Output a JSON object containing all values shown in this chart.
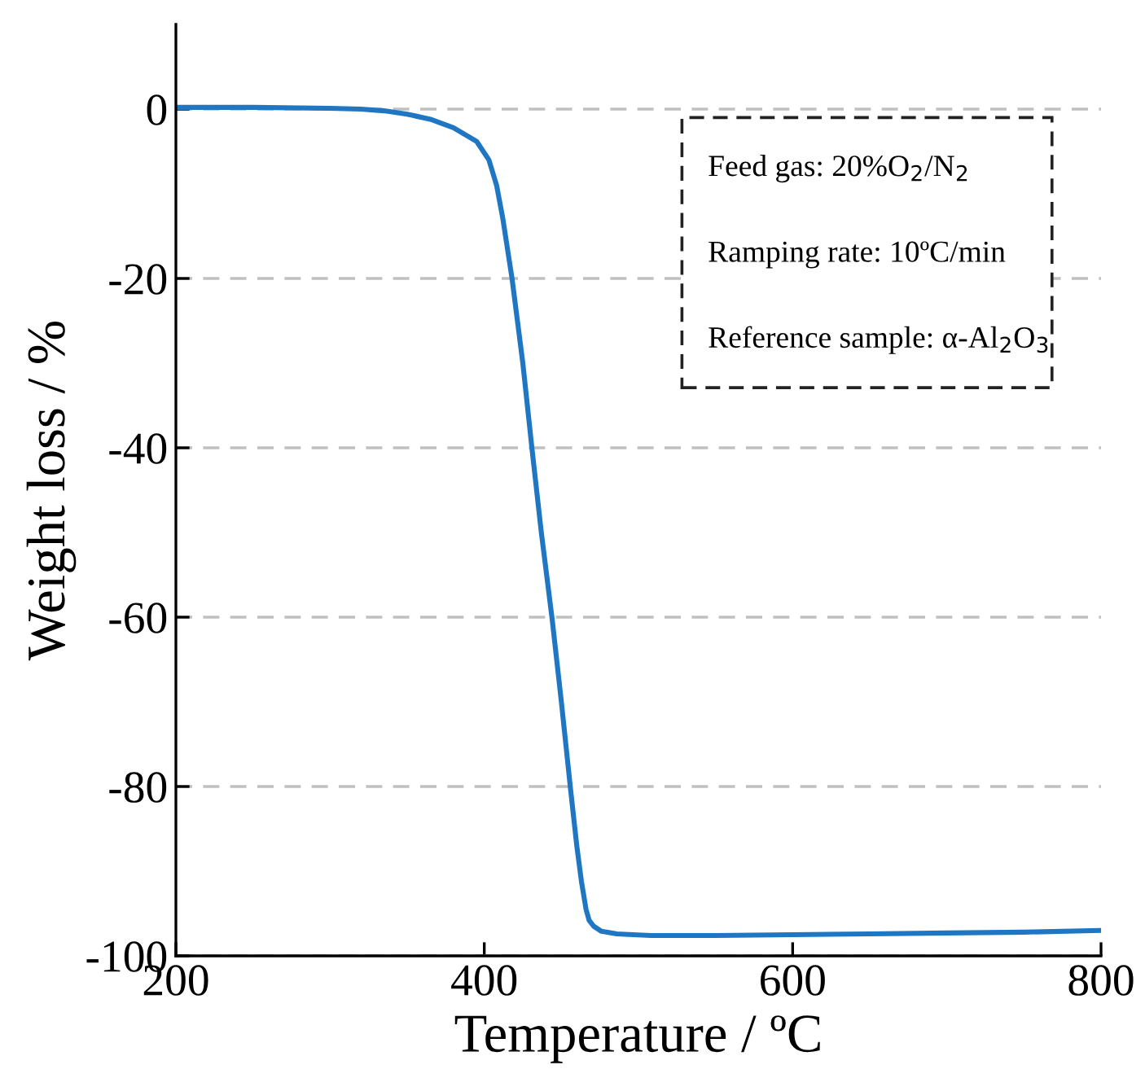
{
  "chart_data": {
    "type": "line",
    "xlabel": "Temperature / ºC",
    "ylabel": "Weight loss / %",
    "series": [
      {
        "color": "#1f77c4",
        "x": [
          200,
          250,
          300,
          320,
          335,
          350,
          365,
          380,
          395,
          403,
          408,
          412,
          418,
          425,
          431,
          437,
          444,
          450,
          456,
          460,
          463,
          466,
          468,
          471,
          476,
          486,
          508,
          550,
          600,
          650,
          700,
          750,
          800
        ],
        "values": [
          0.2,
          0.2,
          0.1,
          0,
          -0.2,
          -0.6,
          -1.2,
          -2.2,
          -3.8,
          -6.0,
          -9,
          -12.9,
          -20,
          -30,
          -40.2,
          -50,
          -60.2,
          -70,
          -80.4,
          -87,
          -91.2,
          -94.5,
          -95.8,
          -96.5,
          -97.1,
          -97.4,
          -97.6,
          -97.6,
          -97.5,
          -97.4,
          -97.3,
          -97.2,
          -97.0
        ]
      }
    ],
    "xlim": [
      200,
      800
    ],
    "ylim": [
      -100,
      10
    ],
    "xticks": [
      200,
      400,
      600,
      800
    ],
    "yticks": [
      -100,
      -80,
      -60,
      -40,
      -20,
      0
    ],
    "grid": "y",
    "marker": "none",
    "line_style": "solid",
    "annotations": [
      "Feed gas: 20%O$_{2}$/N$_{2}$",
      "Ramping rate: 10ºC/min",
      "Reference sample: α-Al$_{2}$O$_{3}$"
    ]
  }
}
